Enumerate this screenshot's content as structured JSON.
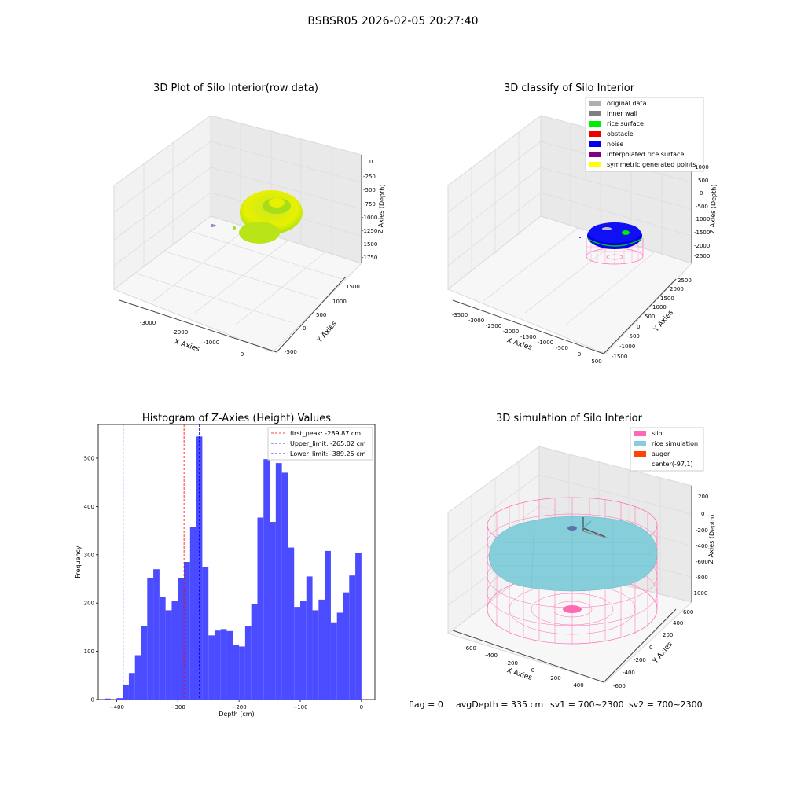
{
  "figure": {
    "suptitle": "BSBSR05 2026-02-05 20:27:40",
    "footer": {
      "flag": "flag = 0",
      "avg_depth": "avgDepth = 335 cm",
      "sv1": "sv1 = 700~2300",
      "sv2": "sv2 = 700~2300"
    }
  },
  "colors": {
    "grid_pane": "#f2f2f2",
    "grid_line": "#dcdcdc",
    "hist_bar": "#4b4bff",
    "first_peak": "#ff0000",
    "limit_line": "#0000ff",
    "silo": "#ff69b4",
    "rice": "#87cedb",
    "auger": "#ff4500",
    "rice_surface": "#00ee00",
    "noise": "#0000ff",
    "yellow": "#e8f000"
  },
  "chart_data": [
    {
      "type": "scatter",
      "title": "3D Plot of Silo Interior(row data)",
      "xlabel": "X Axies",
      "ylabel": "Y Axies",
      "zlabel": "Z Axies (Depth)",
      "x_ticks": [
        "-3000",
        "-2000",
        "-1000",
        "0"
      ],
      "y_ticks": [
        "-500",
        "0",
        "500",
        "1000",
        "1500"
      ],
      "z_ticks": [
        "0",
        "-250",
        "-500",
        "-750",
        "-1000",
        "-1250",
        "-1500",
        "-1750"
      ]
    },
    {
      "type": "scatter",
      "title": "3D classify of Silo Interior",
      "xlabel": "X Axies",
      "ylabel": "Y Axies",
      "zlabel": "Z Axies (Depth)",
      "x_ticks": [
        "-3500",
        "-3000",
        "-2500",
        "-2000",
        "-1500",
        "-1000",
        "-500",
        "0",
        "500"
      ],
      "y_ticks": [
        "-1500",
        "-1000",
        "-500",
        "0",
        "500",
        "1000",
        "1500",
        "2000",
        "2500"
      ],
      "z_ticks": [
        "1000",
        "500",
        "0",
        "-500",
        "-1000",
        "-1500",
        "-2000",
        "-2500"
      ],
      "legend": [
        {
          "label": "original data",
          "color": "#b0b0b0"
        },
        {
          "label": "inner wall",
          "color": "#808080"
        },
        {
          "label": "rice surface",
          "color": "#00ee00"
        },
        {
          "label": "obstacle",
          "color": "#ee0000"
        },
        {
          "label": "noise",
          "color": "#0000ee"
        },
        {
          "label": "interpolated rice surface",
          "color": "#800080"
        },
        {
          "label": "symmetric generated points",
          "color": "#ffff00"
        }
      ]
    },
    {
      "type": "bar",
      "title": "Histogram of Z-Axies (Height) Values",
      "xlabel": "Depth (cm)",
      "ylabel": "Frequency",
      "xlim": [
        -430,
        22
      ],
      "ylim": [
        0,
        570
      ],
      "x_ticks": [
        -400,
        -300,
        -200,
        -100,
        0
      ],
      "x_tick_labels": [
        "−400",
        "−300",
        "−200",
        "−100",
        "0"
      ],
      "y_ticks": [
        0,
        100,
        200,
        300,
        400,
        500
      ],
      "x": [
        -398,
        -394,
        -390,
        -386,
        -382,
        -378,
        -374,
        -370,
        -366,
        -362,
        -358,
        -354,
        -350,
        -346,
        -342,
        -338,
        -334,
        -330,
        -326,
        -322,
        -318,
        -314,
        -310,
        -306,
        -302,
        -298,
        -294,
        -290,
        -286,
        -282,
        -278,
        -274,
        -270,
        -266,
        -262,
        -258,
        -254,
        -250,
        -246,
        -242,
        -238,
        -234,
        -230,
        -226,
        -222,
        -218,
        -214,
        -210,
        -206,
        -202,
        -198,
        -194,
        -190,
        -186,
        -182,
        -178,
        -174,
        -170,
        -166,
        -162,
        -158,
        -154,
        -150,
        -146,
        -142,
        -138,
        -134,
        -130,
        -126,
        -122,
        -118,
        -114,
        -110,
        -106,
        -102,
        -98,
        -94,
        -90,
        -86,
        -82,
        -78,
        -74,
        -70,
        -66,
        -62,
        -58,
        -54,
        -50,
        -46,
        -42,
        -38,
        -34,
        -30,
        -26,
        -22,
        -18,
        -14,
        -10,
        -6,
        -2
      ],
      "bins": [
        {
          "x0": -430,
          "x1": -420,
          "v": 0
        },
        {
          "x0": -420,
          "x1": -410,
          "v": 2
        },
        {
          "x0": -410,
          "x1": -400,
          "v": 0
        },
        {
          "x0": -400,
          "x1": -390,
          "v": 3
        },
        {
          "x0": -390,
          "x1": -380,
          "v": 30
        },
        {
          "x0": -380,
          "x1": -370,
          "v": 55
        },
        {
          "x0": -370,
          "x1": -360,
          "v": 92
        },
        {
          "x0": -360,
          "x1": -350,
          "v": 152
        },
        {
          "x0": -350,
          "x1": -340,
          "v": 252
        },
        {
          "x0": -340,
          "x1": -330,
          "v": 270
        },
        {
          "x0": -330,
          "x1": -320,
          "v": 212
        },
        {
          "x0": -320,
          "x1": -310,
          "v": 185
        },
        {
          "x0": -310,
          "x1": -300,
          "v": 205
        },
        {
          "x0": -300,
          "x1": -290,
          "v": 252
        },
        {
          "x0": -290,
          "x1": -280,
          "v": 285
        },
        {
          "x0": -280,
          "x1": -270,
          "v": 358
        },
        {
          "x0": -270,
          "x1": -260,
          "v": 545
        },
        {
          "x0": -260,
          "x1": -250,
          "v": 275
        },
        {
          "x0": -250,
          "x1": -240,
          "v": 133
        },
        {
          "x0": -240,
          "x1": -230,
          "v": 143
        },
        {
          "x0": -230,
          "x1": -220,
          "v": 146
        },
        {
          "x0": -220,
          "x1": -210,
          "v": 142
        },
        {
          "x0": -210,
          "x1": -200,
          "v": 113
        },
        {
          "x0": -200,
          "x1": -190,
          "v": 110
        },
        {
          "x0": -190,
          "x1": -180,
          "v": 152
        },
        {
          "x0": -180,
          "x1": -170,
          "v": 198
        },
        {
          "x0": -170,
          "x1": -160,
          "v": 377
        },
        {
          "x0": -160,
          "x1": -150,
          "v": 498
        },
        {
          "x0": -150,
          "x1": -140,
          "v": 368
        },
        {
          "x0": -140,
          "x1": -130,
          "v": 490
        },
        {
          "x0": -130,
          "x1": -120,
          "v": 470
        },
        {
          "x0": -120,
          "x1": -110,
          "v": 315
        },
        {
          "x0": -110,
          "x1": -100,
          "v": 192
        },
        {
          "x0": -100,
          "x1": -90,
          "v": 205
        },
        {
          "x0": -90,
          "x1": -80,
          "v": 255
        },
        {
          "x0": -80,
          "x1": -70,
          "v": 185
        },
        {
          "x0": -70,
          "x1": -60,
          "v": 207
        },
        {
          "x0": -60,
          "x1": -50,
          "v": 308
        },
        {
          "x0": -50,
          "x1": -40,
          "v": 160
        },
        {
          "x0": -40,
          "x1": -30,
          "v": 180
        },
        {
          "x0": -30,
          "x1": -20,
          "v": 222
        },
        {
          "x0": -20,
          "x1": -10,
          "v": 257
        },
        {
          "x0": -10,
          "x1": 0,
          "v": 303
        }
      ],
      "vlines": [
        {
          "label": "first_peak: -289.87 cm",
          "x": -289.87,
          "color": "#ff0000"
        },
        {
          "label": "Upper_limit: -265.02 cm",
          "x": -265.02,
          "color": "#0000ff"
        },
        {
          "label": "Lower_limit: -389.25 cm",
          "x": -389.25,
          "color": "#0000ff"
        }
      ]
    },
    {
      "type": "scatter",
      "title": "3D simulation of Silo Interior",
      "xlabel": "X Axies",
      "ylabel": "Y Axies",
      "zlabel": "Z Axies (Depth)",
      "x_ticks": [
        "-600",
        "-400",
        "-200",
        "0",
        "200",
        "400"
      ],
      "y_ticks": [
        "-600",
        "-400",
        "-200",
        "0",
        "200",
        "400",
        "600"
      ],
      "z_ticks": [
        "200",
        "0",
        "-200",
        "-400",
        "-600",
        "-800",
        "-1000"
      ],
      "legend": [
        {
          "label": "silo",
          "color": "#ff69b4"
        },
        {
          "label": "rice simulation",
          "color": "#87cedb"
        },
        {
          "label": "auger",
          "color": "#ff4500"
        },
        {
          "label": "center(-97,1)",
          "color": "none"
        }
      ]
    }
  ]
}
